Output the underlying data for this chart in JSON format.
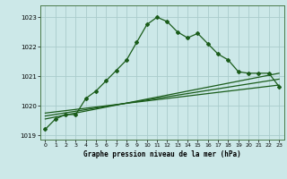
{
  "title": "Graphe pression niveau de la mer (hPa)",
  "bg_color": "#cce8e8",
  "grid_color": "#aacccc",
  "line_color": "#1a5c1a",
  "xlim": [
    -0.5,
    23.5
  ],
  "ylim": [
    1018.85,
    1023.4
  ],
  "yticks": [
    1019,
    1020,
    1021,
    1022,
    1023
  ],
  "xticks": [
    0,
    1,
    2,
    3,
    4,
    5,
    6,
    7,
    8,
    9,
    10,
    11,
    12,
    13,
    14,
    15,
    16,
    17,
    18,
    19,
    20,
    21,
    22,
    23
  ],
  "main_x": [
    0,
    1,
    2,
    3,
    4,
    5,
    6,
    7,
    8,
    9,
    10,
    11,
    12,
    13,
    14,
    15,
    16,
    17,
    18,
    19,
    20,
    21,
    22,
    23
  ],
  "main_y": [
    1019.2,
    1019.55,
    1019.7,
    1019.7,
    1020.25,
    1020.5,
    1020.85,
    1021.2,
    1021.55,
    1022.15,
    1022.75,
    1023.0,
    1022.85,
    1022.5,
    1022.3,
    1022.45,
    1022.1,
    1021.75,
    1021.55,
    1021.15,
    1021.1,
    1021.1,
    1021.1,
    1020.65
  ],
  "line2_x": [
    0,
    23
  ],
  "line2_y": [
    1019.55,
    1021.1
  ],
  "line3_x": [
    0,
    23
  ],
  "line3_y": [
    1019.75,
    1020.7
  ],
  "line4_x": [
    0,
    23
  ],
  "line4_y": [
    1019.65,
    1020.9
  ]
}
